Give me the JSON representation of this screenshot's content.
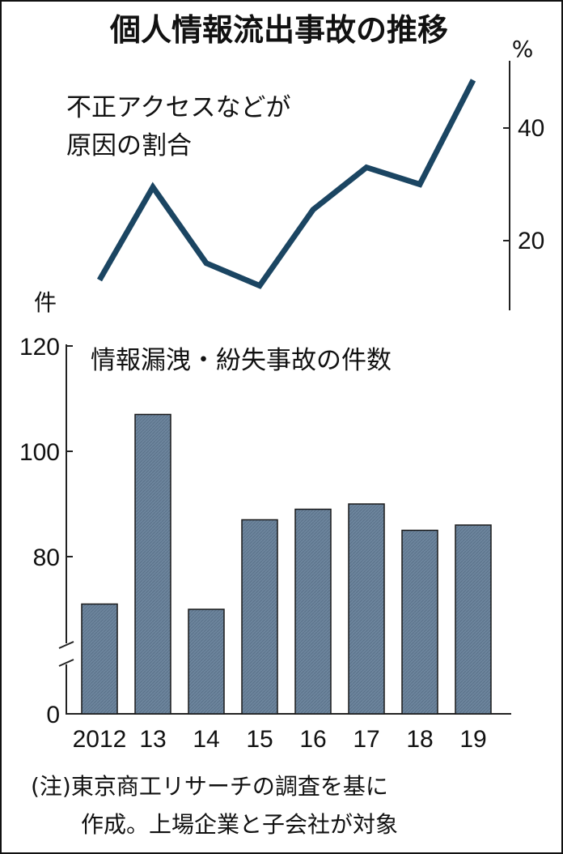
{
  "title": "個人情報流出事故の推移",
  "note_lines": [
    "(注)東京商工リサーチの調査を基に",
    "作成。上場企業と子会社が対象"
  ],
  "colors": {
    "line": "#1b4562",
    "bar": "#6d859d",
    "bar_stroke": "#1a1a1a",
    "axis": "#222222"
  },
  "chart_data": [
    {
      "type": "line",
      "title": "",
      "subtitle_lines": [
        "不正アクセスなどが",
        "原因の割合"
      ],
      "unit": "%",
      "ticks": [
        20,
        40
      ],
      "ylim": [
        8,
        50
      ],
      "x": [
        "2012",
        "13",
        "14",
        "15",
        "16",
        "17",
        "18",
        "19"
      ],
      "values": [
        13,
        29.5,
        16,
        12,
        25.5,
        33,
        30,
        48.5
      ]
    },
    {
      "type": "bar",
      "title": "",
      "subtitle": "情報漏洩・紛失事故の件数",
      "unit": "件",
      "ylim": [
        0,
        120
      ],
      "axis_break": true,
      "ticks": [
        0,
        80,
        100,
        120
      ],
      "categories": [
        "2012",
        "13",
        "14",
        "15",
        "16",
        "17",
        "18",
        "19"
      ],
      "values": [
        71,
        107,
        70,
        87,
        89,
        90,
        85,
        86
      ]
    }
  ]
}
